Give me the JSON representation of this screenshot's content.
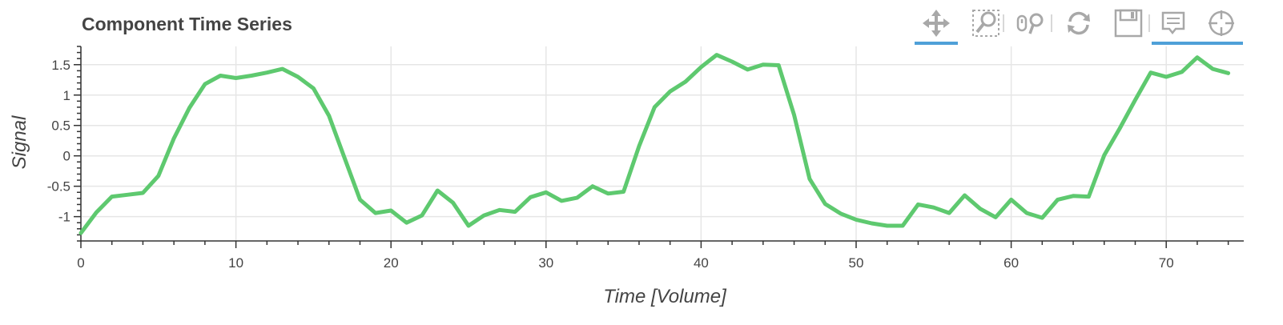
{
  "title": "Component Time Series",
  "toolbar": {
    "tools": [
      {
        "icon": "pan-icon",
        "active": true
      },
      {
        "icon": "box-zoom-icon",
        "active": false
      },
      {
        "icon": "wheel-zoom-icon",
        "active": false
      },
      {
        "icon": "reset-icon",
        "active": false
      },
      {
        "icon": "save-icon",
        "active": false
      },
      {
        "icon": "hover-icon",
        "active": true
      },
      {
        "icon": "crosshair-icon",
        "active": true
      }
    ],
    "active_color": "#4fa0d8",
    "icon_color": "#a8a8a8"
  },
  "chart_data": {
    "type": "line",
    "xlabel": "Time [Volume]",
    "ylabel": "Signal",
    "xlim": [
      0,
      75
    ],
    "ylim": [
      -1.4,
      1.8
    ],
    "x_ticks": [
      0,
      10,
      20,
      30,
      40,
      50,
      60,
      70
    ],
    "y_ticks": [
      -1,
      -0.5,
      0,
      0.5,
      1,
      1.5
    ],
    "x_tick_labels": [
      "0",
      "10",
      "20",
      "30",
      "40",
      "50",
      "60",
      "70"
    ],
    "y_tick_labels": [
      "-1",
      "-0.5",
      "0",
      "0.5",
      "1",
      "1.5"
    ],
    "grid": true,
    "line_color": "#5ec96f",
    "series": [
      {
        "x": [
          0,
          1,
          2,
          3,
          4,
          5,
          6,
          7,
          8,
          9,
          10,
          11,
          12,
          13,
          14,
          15,
          16,
          17,
          18,
          19,
          20,
          21,
          22,
          23,
          24,
          25,
          26,
          27,
          28,
          29,
          30,
          31,
          32,
          33,
          34,
          35,
          36,
          37,
          38,
          39,
          40,
          41,
          42,
          43,
          44,
          45,
          46,
          47,
          48,
          49,
          50,
          51,
          52,
          53,
          54,
          55,
          56,
          57,
          58,
          59,
          60,
          61,
          62,
          63,
          64,
          65,
          66,
          67,
          68,
          69,
          70,
          71,
          72,
          73,
          74
        ],
        "values": [
          -1.27,
          -0.93,
          -0.67,
          -0.64,
          -0.61,
          -0.33,
          0.29,
          0.79,
          1.18,
          1.32,
          1.28,
          1.32,
          1.37,
          1.43,
          1.3,
          1.11,
          0.66,
          -0.03,
          -0.72,
          -0.94,
          -0.9,
          -1.1,
          -0.98,
          -0.57,
          -0.77,
          -1.15,
          -0.98,
          -0.89,
          -0.92,
          -0.68,
          -0.6,
          -0.74,
          -0.69,
          -0.5,
          -0.62,
          -0.59,
          0.16,
          0.8,
          1.06,
          1.22,
          1.46,
          1.66,
          1.55,
          1.42,
          1.5,
          1.49,
          0.67,
          -0.38,
          -0.79,
          -0.95,
          -1.05,
          -1.11,
          -1.15,
          -1.15,
          -0.8,
          -0.85,
          -0.94,
          -0.65,
          -0.87,
          -1.01,
          -0.72,
          -0.94,
          -1.02,
          -0.72,
          -0.66,
          -0.67,
          0.01,
          0.45,
          0.92,
          1.37,
          1.3,
          1.38,
          1.62,
          1.43,
          1.36
        ]
      }
    ]
  }
}
